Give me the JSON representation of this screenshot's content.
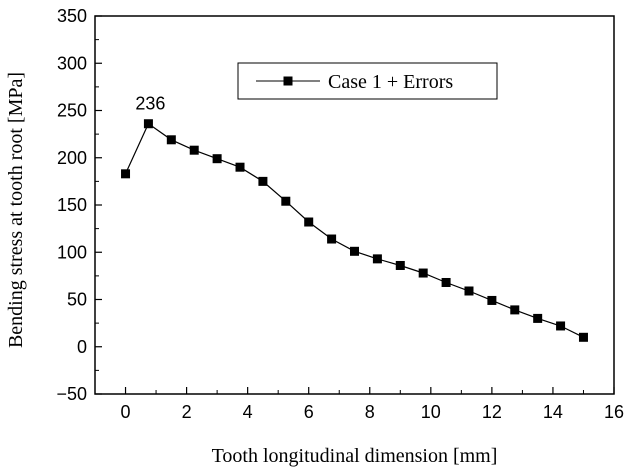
{
  "chart_data": {
    "type": "line",
    "xlabel": "Tooth longitudinal dimension [mm]",
    "ylabel": "Bending stress at tooth root [MPa]",
    "xlim": [
      -1,
      16
    ],
    "ylim": [
      -50,
      350
    ],
    "x_ticks": [
      0,
      2,
      4,
      6,
      8,
      10,
      12,
      14,
      16
    ],
    "y_ticks": [
      -50,
      0,
      50,
      100,
      150,
      200,
      250,
      300,
      350
    ],
    "x_ticks_labels": [
      "0",
      "2",
      "4",
      "6",
      "8",
      "10",
      "12",
      "14",
      "16"
    ],
    "y_ticks_labels": [
      "−50",
      "0",
      "50",
      "100",
      "150",
      "200",
      "250",
      "300",
      "350"
    ],
    "grid": false,
    "legend_position": "top-right",
    "series": [
      {
        "name": "Case 1 + Errors",
        "marker": "square",
        "color": "#000000",
        "x": [
          0,
          0.75,
          1.5,
          2.25,
          3,
          3.75,
          4.5,
          5.25,
          6,
          6.75,
          7.5,
          8.25,
          9,
          9.75,
          10.5,
          11.25,
          12,
          12.75,
          13.5,
          14.25,
          15
        ],
        "y": [
          183,
          236,
          219,
          208,
          199,
          190,
          175,
          154,
          132,
          114,
          101,
          93,
          86,
          78,
          68,
          59,
          49,
          39,
          30,
          22,
          10
        ]
      }
    ],
    "annotations": [
      {
        "text": "236",
        "x": 0.75,
        "y": 236
      }
    ]
  }
}
